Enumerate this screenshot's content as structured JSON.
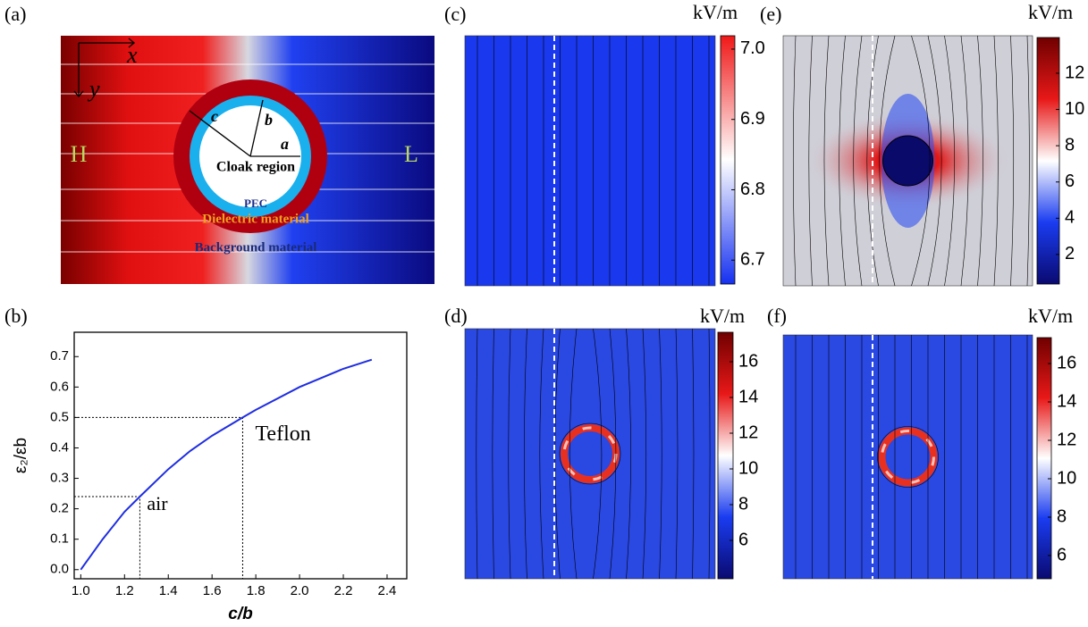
{
  "panel_labels": [
    "(a)",
    "(b)",
    "(c)",
    "(d)",
    "(e)",
    "(f)"
  ],
  "diagram": {
    "axes": [
      "x",
      "y"
    ],
    "radii": [
      "c",
      "b",
      "a"
    ],
    "sides": [
      "H",
      "L"
    ],
    "regions": [
      "Cloak region",
      "PEC",
      "Dielectric material",
      "Background material"
    ]
  },
  "chart_data": [
    {
      "type": "line",
      "xlabel": "c/b",
      "ylabel": "ε₂/εb",
      "x": [
        1.0,
        1.1,
        1.2,
        1.27,
        1.4,
        1.5,
        1.6,
        1.74,
        1.8,
        2.0,
        2.2,
        2.33
      ],
      "values": [
        0,
        0.1,
        0.19,
        0.24,
        0.33,
        0.39,
        0.44,
        0.5,
        0.525,
        0.6,
        0.66,
        0.69
      ],
      "color": "#1f2ee0",
      "xlim": [
        0.97,
        2.49
      ],
      "ylim": [
        -0.03,
        0.78
      ],
      "xticks": [
        {
          "value": 1,
          "label": "1.0"
        },
        1.2,
        1.4,
        1.6,
        1.8,
        {
          "value": 2,
          "label": "2.0"
        },
        2.2,
        2.4
      ],
      "yticks": [
        {
          "value": 0,
          "label": "0.0"
        },
        0.1,
        0.2,
        0.3,
        0.4,
        0.5,
        0.6,
        0.7
      ],
      "annotations": [
        {
          "x": 1.27,
          "y": 0.24,
          "text": "air"
        },
        {
          "x": 1.74,
          "y": 0.5,
          "text": "Teflon"
        }
      ]
    },
    {
      "type": "colormap",
      "colorbar_label": "kV/m",
      "clim": [
        6.666,
        7.019
      ],
      "cticks": [
        6.7,
        6.8,
        6.9,
        {
          "value": 7,
          "label": "7.0"
        }
      ],
      "colors": [
        "#1530f0",
        "#ffffff",
        "#f01818"
      ]
    },
    {
      "type": "colormap",
      "colorbar_label": "kV/m",
      "clim": [
        3.85,
        17.65
      ],
      "cticks": [
        6,
        8,
        10,
        12,
        14,
        16
      ],
      "colors": [
        "#0a0a70",
        "#1a3cf0",
        "#ffffff",
        "#e81818",
        "#700000"
      ]
    },
    {
      "type": "colormap",
      "colorbar_label": "kV/m",
      "clim": [
        0.37,
        13.97
      ],
      "cticks": [
        2,
        4,
        6,
        8,
        10,
        12
      ],
      "colors": [
        "#0a0a70",
        "#1a3cf0",
        "#ffffff",
        "#e81818",
        "#700000"
      ]
    },
    {
      "type": "colormap",
      "colorbar_label": "kV/m",
      "clim": [
        4.79,
        17.35
      ],
      "cticks": [
        6,
        8,
        10,
        12,
        14,
        16
      ],
      "colors": [
        "#0a0a70",
        "#1a3cf0",
        "#ffffff",
        "#e81818",
        "#700000"
      ]
    }
  ]
}
